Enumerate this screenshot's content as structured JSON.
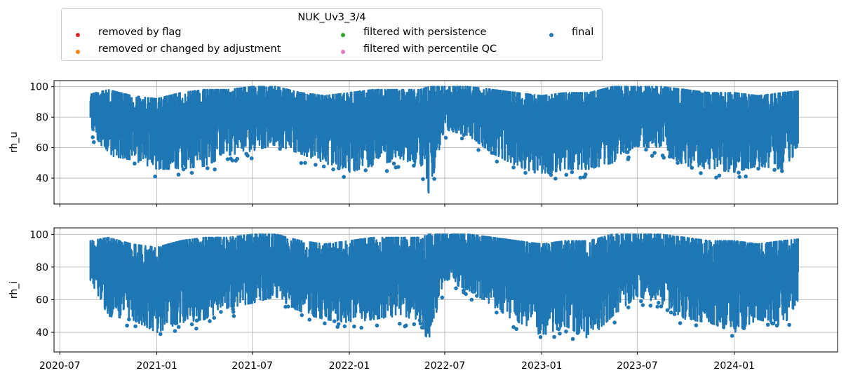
{
  "legend": {
    "title": "NUK_Uv3_3/4",
    "entries": [
      {
        "label": "removed by flag",
        "color": "#d62728"
      },
      {
        "label": "removed or changed by adjustment",
        "color": "#ff7f0e"
      },
      {
        "label": "filtered with persistence",
        "color": "#2ca02c"
      },
      {
        "label": "filtered with percentile QC",
        "color": "#e377c2"
      },
      {
        "label": "final",
        "color": "#1f77b4"
      }
    ]
  },
  "chart_data": [
    {
      "type": "scatter",
      "ylabel": "rh_u",
      "ylim": [
        23,
        104
      ],
      "yticks": [
        40,
        60,
        80,
        100
      ],
      "xlim": [
        "2020-06-20",
        "2024-07-15"
      ],
      "xticks": [
        "2020-07",
        "2021-01",
        "2021-07",
        "2022-01",
        "2022-07",
        "2023-01",
        "2023-07",
        "2024-01"
      ],
      "grid": true,
      "series": [
        {
          "name": "final",
          "color": "#1f77b4",
          "envelope": {
            "x": [
              "2020-08-28",
              "2020-10-01",
              "2020-11-15",
              "2021-01-01",
              "2021-02-15",
              "2021-04-01",
              "2021-05-15",
              "2021-07-01",
              "2021-08-15",
              "2021-10-01",
              "2021-11-15",
              "2022-01-01",
              "2022-02-15",
              "2022-04-01",
              "2022-05-15",
              "2022-06-01",
              "2022-07-01",
              "2022-08-15",
              "2022-10-01",
              "2022-11-15",
              "2023-01-01",
              "2023-02-15",
              "2023-04-01",
              "2023-05-15",
              "2023-07-01",
              "2023-08-15",
              "2023-10-01",
              "2023-11-15",
              "2024-01-01",
              "2024-02-15",
              "2024-04-01",
              "2024-05-01"
            ],
            "low": [
              72,
              55,
              52,
              46,
              46,
              48,
              55,
              58,
              62,
              56,
              50,
              44,
              48,
              52,
              48,
              30,
              72,
              68,
              56,
              48,
              42,
              46,
              46,
              50,
              62,
              58,
              48,
              46,
              44,
              48,
              46,
              58
            ],
            "high": [
              95,
              98,
              94,
              92,
              96,
              98,
              98,
              100,
              100,
              96,
              94,
              96,
              98,
              98,
              98,
              100,
              100,
              100,
              98,
              96,
              94,
              96,
              96,
              100,
              100,
              100,
              98,
              96,
              96,
              94,
              96,
              97
            ]
          }
        }
      ]
    },
    {
      "type": "scatter",
      "ylabel": "rh_i",
      "ylim": [
        28,
        104
      ],
      "yticks": [
        40,
        60,
        80,
        100
      ],
      "xlim": [
        "2020-06-20",
        "2024-07-15"
      ],
      "xticks": [
        "2020-07",
        "2021-01",
        "2021-07",
        "2022-01",
        "2022-07",
        "2023-01",
        "2023-07",
        "2024-01"
      ],
      "grid": true,
      "series": [
        {
          "name": "final",
          "color": "#1f77b4",
          "envelope": {
            "x": [
              "2020-08-28",
              "2020-10-01",
              "2020-11-15",
              "2021-01-01",
              "2021-02-15",
              "2021-04-01",
              "2021-05-15",
              "2021-07-01",
              "2021-08-15",
              "2021-10-01",
              "2021-11-15",
              "2022-01-01",
              "2022-02-15",
              "2022-04-01",
              "2022-05-15",
              "2022-06-01",
              "2022-07-01",
              "2022-08-15",
              "2022-10-01",
              "2022-11-15",
              "2023-01-01",
              "2023-02-15",
              "2023-04-01",
              "2023-05-15",
              "2023-07-01",
              "2023-08-15",
              "2023-10-01",
              "2023-11-15",
              "2024-01-01",
              "2024-02-15",
              "2024-04-01",
              "2024-05-01"
            ],
            "low": [
              72,
              50,
              48,
              40,
              46,
              48,
              55,
              58,
              62,
              52,
              48,
              46,
              48,
              50,
              48,
              32,
              72,
              66,
              56,
              46,
              38,
              44,
              36,
              50,
              62,
              58,
              48,
              46,
              40,
              48,
              44,
              56
            ],
            "high": [
              96,
              98,
              94,
              92,
              96,
              98,
              98,
              100,
              100,
              96,
              94,
              96,
              98,
              98,
              98,
              100,
              100,
              100,
              98,
              96,
              94,
              96,
              96,
              100,
              100,
              100,
              98,
              96,
              96,
              94,
              96,
              97
            ]
          }
        }
      ]
    }
  ]
}
